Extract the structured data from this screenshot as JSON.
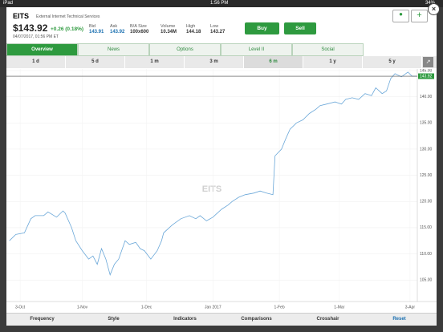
{
  "status_bar": {
    "device": "iPad",
    "time": "1:56 PM",
    "battery": "34%"
  },
  "quote": {
    "symbol": "EITS",
    "company": "External Internet Technical Services",
    "price": "$143.92",
    "change": "+0.26 (0.18%)",
    "timestamp": "04/07/2017, 01:56 PM ET",
    "stats": [
      {
        "label": "Bid",
        "value": "143.91"
      },
      {
        "label": "Ask",
        "value": "143.92"
      },
      {
        "label": "B/A Size",
        "value": "100x600"
      },
      {
        "label": "Volume",
        "value": "10.34M"
      },
      {
        "label": "High",
        "value": "144.18"
      },
      {
        "label": "Low",
        "value": "143.27"
      }
    ],
    "buy": "Buy",
    "sell": "Sell"
  },
  "tabs": [
    "Overview",
    "News",
    "Options",
    "Level II",
    "Social"
  ],
  "ranges": [
    "1 d",
    "5 d",
    "1 m",
    "3 m",
    "6 m",
    "1 y",
    "5 y"
  ],
  "toolbar": [
    "Frequency",
    "Style",
    "Indicators",
    "Comparisons",
    "Crosshair",
    "Reset"
  ],
  "chart_data": {
    "type": "line",
    "watermark": "EITS",
    "color": "#6aa7d8",
    "grid": true,
    "x": [
      -5,
      -2,
      2,
      5,
      7,
      11,
      13,
      17,
      20,
      21,
      24,
      26,
      29,
      32,
      34,
      36,
      38,
      40,
      42,
      44,
      46,
      49,
      51,
      54,
      56,
      58,
      61,
      64,
      66,
      67,
      71,
      75,
      79,
      82,
      84,
      87,
      90,
      94,
      97,
      99,
      102,
      105,
      109,
      112,
      115,
      118,
      119,
      122,
      124,
      126,
      129,
      132,
      135,
      138,
      140,
      143,
      147,
      150,
      152,
      155,
      158,
      161,
      164,
      166,
      169,
      171,
      173,
      175,
      178,
      181,
      183,
      185
    ],
    "values": [
      112.5,
      113.7,
      114,
      116.7,
      117.3,
      117.3,
      118,
      117,
      118.2,
      117.8,
      115,
      112.5,
      110.6,
      109,
      109.6,
      108,
      111,
      109,
      106,
      108,
      109,
      112.5,
      111.8,
      112.2,
      111,
      110.6,
      109,
      110.6,
      112.5,
      114,
      115.5,
      116.7,
      117.3,
      116.7,
      117.3,
      116.3,
      117,
      118.5,
      119.3,
      120,
      120.8,
      121.3,
      121.6,
      122,
      121.6,
      121.3,
      128.7,
      130,
      132,
      133.8,
      135,
      135.6,
      136.8,
      137.6,
      138.3,
      138.6,
      139,
      138.6,
      139.5,
      139.8,
      139.5,
      140.6,
      140.2,
      141.7,
      140.6,
      141.1,
      143.5,
      144.4,
      143.8,
      144.7,
      143.9,
      143.92
    ],
    "price_line": 143.92,
    "xlim": [
      -6.4,
      185.4
    ],
    "xticks": [
      {
        "value": 0,
        "label": "3-Oct"
      },
      {
        "value": 29,
        "label": "1-Nov"
      },
      {
        "value": 59,
        "label": "1-Dec"
      },
      {
        "value": 90,
        "label": "Jan 2017"
      },
      {
        "value": 121,
        "label": "1-Feb"
      },
      {
        "value": 149,
        "label": "1-Mar"
      },
      {
        "value": 182,
        "label": "3-Apr"
      }
    ],
    "ylim": [
      100.9,
      145.3
    ],
    "yticks": [
      {
        "value": 105,
        "label": "105.00"
      },
      {
        "value": 110,
        "label": "110.00"
      },
      {
        "value": 115,
        "label": "115.00"
      },
      {
        "value": 120,
        "label": "120.00"
      },
      {
        "value": 125,
        "label": "125.00"
      },
      {
        "value": 130,
        "label": "130.00"
      },
      {
        "value": 135,
        "label": "135.00"
      },
      {
        "value": 140,
        "label": "140.00"
      },
      {
        "value": 145,
        "label": "145.00"
      }
    ]
  }
}
